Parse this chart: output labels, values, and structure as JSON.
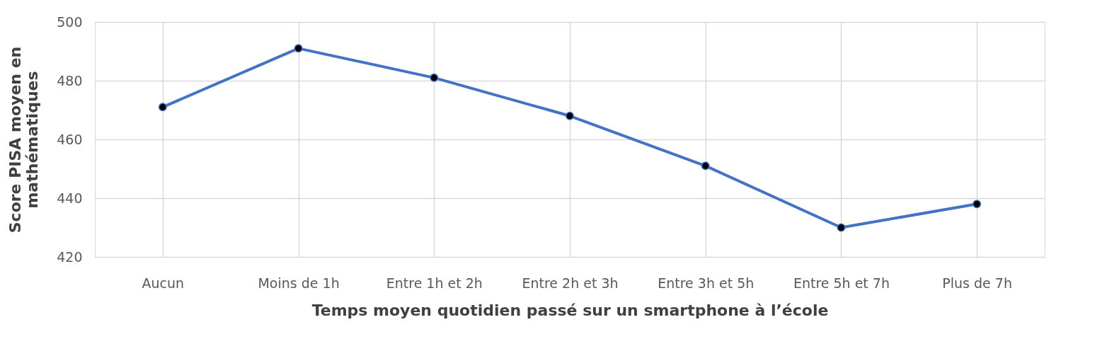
{
  "chart_data": {
    "type": "line",
    "categories": [
      "Aucun",
      "Moins de 1h",
      "Entre 1h et 2h",
      "Entre 2h et 3h",
      "Entre 3h et 5h",
      "Entre 5h et 7h",
      "Plus de 7h"
    ],
    "series": [
      {
        "color": "#4472c4",
        "values": [
          471,
          491,
          481,
          468,
          451,
          430,
          438
        ]
      }
    ],
    "xlabel": "Temps moyen  quotidien passé sur un smartphone à l’école",
    "ylabel": "Score PISA  moyen en\nmathématiques",
    "ylim": [
      420,
      500
    ],
    "yticks": [
      420,
      440,
      460,
      480,
      500
    ],
    "grid": true,
    "marker": "circle",
    "line_style": "solid"
  }
}
